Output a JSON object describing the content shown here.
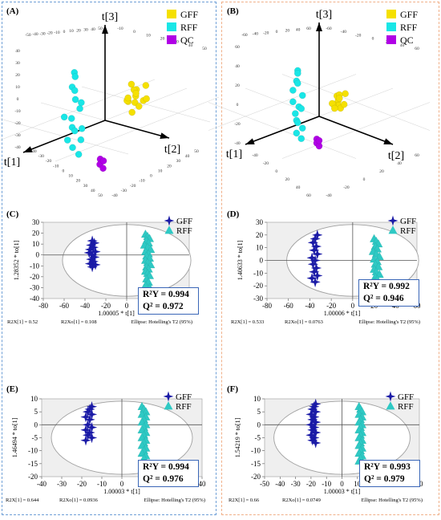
{
  "colors": {
    "gff_3d": "#f5e000",
    "rff_3d": "#19e6e6",
    "qc_3d": "#b000e6",
    "gff_2d": "#1a1aa6",
    "rff_2d": "#2ec9c4",
    "plot_bg": "#efefef",
    "stat_border": "#3a66b7"
  },
  "chart_data": [
    {
      "panel": "(A)",
      "type": "scatter",
      "dimensions": 3,
      "axes": [
        "t[1]",
        "t[2]",
        "t[3]"
      ],
      "legend": [
        "GFF",
        "RFF",
        "QC"
      ],
      "legend_position": "top-right",
      "series": [
        {
          "name": "GFF",
          "points": [
            [
              -20,
              -4,
              4
            ],
            [
              -18,
              -2,
              2
            ],
            [
              -22,
              -6,
              6
            ],
            [
              -24,
              -2,
              8
            ],
            [
              -19,
              -8,
              1
            ],
            [
              -21,
              -3,
              -1
            ],
            [
              -16,
              -5,
              3
            ],
            [
              -23,
              -9,
              5
            ],
            [
              -17,
              0,
              7
            ],
            [
              -25,
              -5,
              0
            ],
            [
              -20,
              -7,
              9
            ],
            [
              -18,
              -4,
              -3
            ],
            [
              -22,
              1,
              3
            ],
            [
              -15,
              -3,
              5
            ]
          ]
        },
        {
          "name": "RFF",
          "points": [
            [
              20,
              4,
              30
            ],
            [
              18,
              2,
              27
            ],
            [
              22,
              5,
              24
            ],
            [
              19,
              3,
              21
            ],
            [
              21,
              6,
              18
            ],
            [
              17,
              4,
              12
            ],
            [
              20,
              2,
              8
            ],
            [
              22,
              5,
              5
            ],
            [
              19,
              3,
              2
            ],
            [
              18,
              6,
              -2
            ],
            [
              21,
              4,
              -5
            ],
            [
              20,
              7,
              -8
            ],
            [
              23,
              3,
              -1
            ],
            [
              17,
              5,
              15
            ],
            [
              24,
              2,
              10
            ],
            [
              19,
              8,
              4
            ]
          ]
        },
        {
          "name": "QC",
          "points": [
            [
              5,
              3,
              -16
            ],
            [
              6,
              4,
              -18
            ],
            [
              5,
              5,
              -20
            ],
            [
              4,
              4,
              -17
            ]
          ]
        }
      ]
    },
    {
      "panel": "(B)",
      "type": "scatter",
      "dimensions": 3,
      "axes": [
        "t[1]",
        "t[2]",
        "t[3]"
      ],
      "legend": [
        "GFF",
        "RFF",
        "QC"
      ],
      "legend_position": "top-right",
      "series": [
        {
          "name": "GFF",
          "points": [
            [
              -22,
              -6,
              2
            ],
            [
              -20,
              -4,
              0
            ],
            [
              -24,
              -8,
              4
            ],
            [
              -26,
              -4,
              6
            ],
            [
              -21,
              -9,
              -1
            ],
            [
              -23,
              -5,
              -3
            ],
            [
              -18,
              -7,
              1
            ],
            [
              -25,
              -10,
              3
            ],
            [
              -19,
              -2,
              8
            ],
            [
              -27,
              -6,
              -2
            ],
            [
              -22,
              -9,
              -4
            ],
            [
              -20,
              -3,
              5
            ]
          ]
        },
        {
          "name": "RFF",
          "points": [
            [
              22,
              4,
              38
            ],
            [
              20,
              2,
              35
            ],
            [
              24,
              5,
              32
            ],
            [
              21,
              3,
              29
            ],
            [
              23,
              6,
              15
            ],
            [
              19,
              4,
              12
            ],
            [
              22,
              2,
              9
            ],
            [
              24,
              5,
              6
            ],
            [
              21,
              3,
              3
            ],
            [
              20,
              6,
              0
            ],
            [
              23,
              4,
              -3
            ],
            [
              22,
              7,
              -6
            ],
            [
              25,
              3,
              18
            ],
            [
              19,
              5,
              21
            ],
            [
              24,
              2,
              25
            ]
          ]
        },
        {
          "name": "QC",
          "points": [
            [
              6,
              4,
              -12
            ],
            [
              7,
              5,
              -14
            ],
            [
              6,
              6,
              -16
            ],
            [
              5,
              5,
              -13
            ]
          ]
        }
      ]
    },
    {
      "panel": "(C)",
      "type": "scatter",
      "xlabel": "1.00005 * t[1]",
      "ylabel": "1.28352 * to[1]",
      "xlim": [
        -80,
        60
      ],
      "ylim": [
        -40,
        30
      ],
      "xticks": [
        -80,
        -60,
        -40,
        -20,
        0,
        20,
        40,
        60
      ],
      "yticks": [
        -40,
        -30,
        -20,
        -10,
        0,
        10,
        20,
        30
      ],
      "legend": [
        "GFF",
        "RFF"
      ],
      "legend_position": "top-right",
      "stats": {
        "r2y": "0.994",
        "q2": "0.972"
      },
      "footer": {
        "r2x": "R2X[1] = 0.52",
        "r2xo": "R2Xo[1] = 0.108",
        "ellipse": "Ellipse: Hotelling's T2 (95%)"
      },
      "series": [
        {
          "name": "GFF",
          "points": [
            [
              -33,
              13
            ],
            [
              -31,
              11
            ],
            [
              -34,
              9
            ],
            [
              -32,
              7
            ],
            [
              -35,
              5
            ],
            [
              -30,
              3
            ],
            [
              -36,
              2
            ],
            [
              -33,
              0
            ],
            [
              -31,
              -2
            ],
            [
              -34,
              -4
            ],
            [
              -32,
              -6
            ],
            [
              -35,
              -8
            ],
            [
              -30,
              -9
            ],
            [
              -33,
              -11
            ]
          ]
        },
        {
          "name": "RFF",
          "points": [
            [
              18,
              19
            ],
            [
              20,
              17
            ],
            [
              22,
              15
            ],
            [
              19,
              13
            ],
            [
              21,
              11
            ],
            [
              17,
              9
            ],
            [
              20,
              7
            ],
            [
              23,
              5
            ],
            [
              18,
              3
            ],
            [
              21,
              1
            ],
            [
              19,
              -1
            ],
            [
              22,
              -3
            ],
            [
              18,
              -5
            ],
            [
              20,
              -7
            ],
            [
              23,
              -9
            ],
            [
              19,
              -11
            ],
            [
              21,
              -13
            ],
            [
              18,
              -15
            ],
            [
              20,
              -17
            ],
            [
              22,
              -19
            ],
            [
              19,
              -22
            ],
            [
              21,
              -25
            ],
            [
              18,
              -28
            ],
            [
              22,
              -30
            ]
          ]
        }
      ]
    },
    {
      "panel": "(D)",
      "type": "scatter",
      "xlabel": "1.00006 * t[1]",
      "ylabel": "1.40633 * to[1]",
      "xlim": [
        -80,
        60
      ],
      "ylim": [
        -30,
        30
      ],
      "xticks": [
        -80,
        -60,
        -40,
        -20,
        0,
        20,
        40,
        60
      ],
      "yticks": [
        -30,
        -20,
        -10,
        0,
        10,
        20,
        30
      ],
      "legend": [
        "GFF",
        "RFF"
      ],
      "legend_position": "top-right",
      "stats": {
        "r2y": "0.992",
        "q2": "0.946"
      },
      "footer": {
        "r2x": "R2X[1] = 0.533",
        "r2xo": "R2Xo[1] = 0.0763",
        "ellipse": "Ellipse: Hotelling's T2 (95%)"
      },
      "series": [
        {
          "name": "GFF",
          "points": [
            [
              -33,
              20
            ],
            [
              -35,
              17
            ],
            [
              -37,
              14
            ],
            [
              -34,
              11
            ],
            [
              -36,
              8
            ],
            [
              -33,
              5
            ],
            [
              -38,
              2
            ],
            [
              -35,
              0
            ],
            [
              -37,
              -3
            ],
            [
              -34,
              -6
            ],
            [
              -36,
              -9
            ],
            [
              -33,
              -12
            ],
            [
              -38,
              -14
            ],
            [
              -35,
              -17
            ]
          ]
        },
        {
          "name": "RFF",
          "points": [
            [
              20,
              17
            ],
            [
              22,
              15
            ],
            [
              24,
              13
            ],
            [
              21,
              11
            ],
            [
              23,
              9
            ],
            [
              19,
              7
            ],
            [
              22,
              5
            ],
            [
              25,
              3
            ],
            [
              20,
              1
            ],
            [
              23,
              -1
            ],
            [
              21,
              -3
            ],
            [
              24,
              -5
            ],
            [
              20,
              -7
            ],
            [
              22,
              -9
            ],
            [
              25,
              -11
            ],
            [
              21,
              -13
            ],
            [
              23,
              -15
            ],
            [
              20,
              -17
            ],
            [
              22,
              -19
            ],
            [
              24,
              -21
            ],
            [
              21,
              -24
            ]
          ]
        }
      ]
    },
    {
      "panel": "(E)",
      "type": "scatter",
      "xlabel": "1.00003 * t[1]",
      "ylabel": "1.46494 * to[1]",
      "xlim": [
        -40,
        40
      ],
      "ylim": [
        -20,
        10
      ],
      "xticks": [
        -40,
        -30,
        -20,
        -10,
        0,
        10,
        20,
        30,
        40
      ],
      "yticks": [
        -20,
        -15,
        -10,
        -5,
        0,
        5,
        10
      ],
      "legend": [
        "GFF",
        "RFF"
      ],
      "legend_position": "top-right",
      "stats": {
        "r2y": "0.994",
        "q2": "0.976"
      },
      "footer": {
        "r2x": "R2X[1] = 0.644",
        "r2xo": "R2Xo[1] = 0.0936",
        "ellipse": "Ellipse: Hotelling's T2 (95%)"
      },
      "series": [
        {
          "name": "GFF",
          "points": [
            [
              -15,
              7
            ],
            [
              -16,
              6
            ],
            [
              -17,
              5
            ],
            [
              -15,
              4
            ],
            [
              -18,
              3
            ],
            [
              -16,
              2
            ],
            [
              -17,
              0
            ],
            [
              -15,
              -1
            ],
            [
              -18,
              -2
            ],
            [
              -16,
              -3
            ],
            [
              -17,
              -4
            ],
            [
              -15,
              -5
            ],
            [
              -18,
              -6
            ]
          ]
        },
        {
          "name": "RFF",
          "points": [
            [
              10,
              7
            ],
            [
              11,
              6
            ],
            [
              12,
              5
            ],
            [
              10,
              4
            ],
            [
              12,
              3
            ],
            [
              11,
              2
            ],
            [
              10,
              1
            ],
            [
              12,
              0
            ],
            [
              11,
              -1
            ],
            [
              10,
              -2
            ],
            [
              12,
              -3
            ],
            [
              11,
              -4
            ],
            [
              10,
              -5
            ],
            [
              12,
              -6
            ],
            [
              11,
              -7
            ],
            [
              10,
              -8
            ],
            [
              12,
              -9
            ],
            [
              11,
              -10
            ],
            [
              10,
              -11
            ],
            [
              12,
              -12
            ],
            [
              11,
              -13
            ]
          ]
        }
      ]
    },
    {
      "panel": "(F)",
      "type": "scatter",
      "xlabel": "1.00003 * t[1]",
      "ylabel": "1.54219 * to[1]",
      "xlim": [
        -50,
        50
      ],
      "ylim": [
        -20,
        10
      ],
      "xticks": [
        -50,
        -40,
        -30,
        -20,
        -10,
        0,
        10,
        20,
        30,
        40,
        50
      ],
      "yticks": [
        -20,
        -15,
        -10,
        -5,
        0,
        5,
        10
      ],
      "legend": [
        "GFF",
        "RFF"
      ],
      "legend_position": "top-right",
      "stats": {
        "r2y": "0.993",
        "q2": "0.979"
      },
      "footer": {
        "r2x": "R2X[1] = 0.66",
        "r2xo": "R2Xo[1] = 0.0749",
        "ellipse": "Ellipse: Hotelling's T2 (95%)"
      },
      "series": [
        {
          "name": "GFF",
          "points": [
            [
              -17,
              8
            ],
            [
              -18,
              7
            ],
            [
              -19,
              6
            ],
            [
              -17,
              5
            ],
            [
              -20,
              4
            ],
            [
              -18,
              3
            ],
            [
              -19,
              2
            ],
            [
              -17,
              1
            ],
            [
              -20,
              0
            ],
            [
              -18,
              -1
            ],
            [
              -19,
              -2
            ],
            [
              -17,
              -3
            ],
            [
              -20,
              -4
            ],
            [
              -18,
              -5
            ],
            [
              -19,
              -6
            ],
            [
              -17,
              -7
            ]
          ]
        },
        {
          "name": "RFF",
          "points": [
            [
              11,
              7
            ],
            [
              12,
              6
            ],
            [
              13,
              5
            ],
            [
              11,
              4
            ],
            [
              13,
              3
            ],
            [
              12,
              2
            ],
            [
              11,
              1
            ],
            [
              13,
              0
            ],
            [
              12,
              -1
            ],
            [
              11,
              -2
            ],
            [
              13,
              -3
            ],
            [
              12,
              -4
            ],
            [
              11,
              -5
            ],
            [
              13,
              -6
            ],
            [
              12,
              -7
            ],
            [
              11,
              -8
            ],
            [
              13,
              -9
            ],
            [
              12,
              -10
            ],
            [
              11,
              -11
            ],
            [
              13,
              -12
            ],
            [
              12,
              -13
            ],
            [
              11,
              -14
            ]
          ]
        }
      ]
    }
  ]
}
